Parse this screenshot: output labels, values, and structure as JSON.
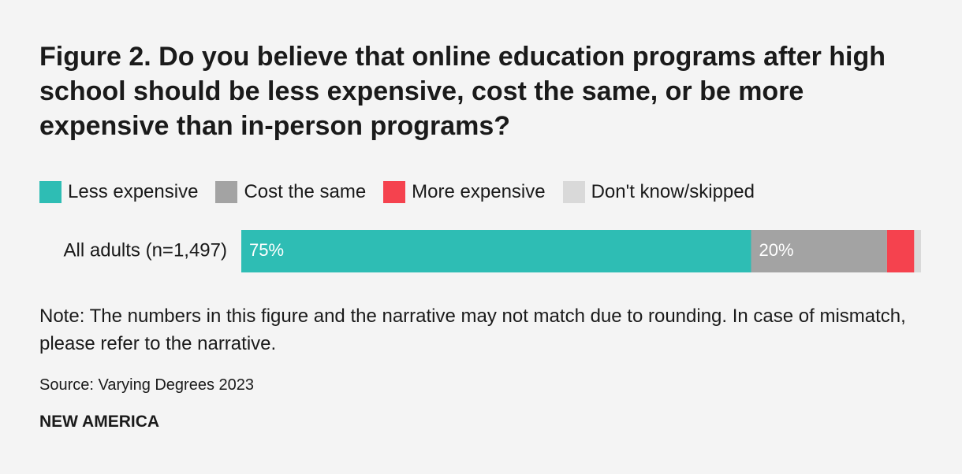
{
  "chart_data": {
    "type": "stacked-bar-horizontal",
    "title": "Figure 2. Do you believe that online education programs after high school should be less expensive, cost the same, or be more expensive than in-person programs?",
    "categories": [
      "All adults (n=1,497)"
    ],
    "series": [
      {
        "name": "Less expensive",
        "color": "#2ebdb4",
        "values": [
          75
        ],
        "value_labels": [
          "75%"
        ]
      },
      {
        "name": "Cost the same",
        "color": "#a3a3a3",
        "values": [
          20
        ],
        "value_labels": [
          "20%"
        ]
      },
      {
        "name": "More expensive",
        "color": "#f5424e",
        "values": [
          4
        ]
      },
      {
        "name": "Don't know/skipped",
        "color": "#d9d9d9",
        "values": [
          1
        ]
      }
    ],
    "xlim": [
      0,
      100
    ],
    "note": "Note: The numbers in this figure and the narrative may not match due to rounding. In case of mismatch, please refer to the narrative.",
    "source": "Source: Varying Degrees 2023",
    "brand": "NEW AMERICA"
  }
}
